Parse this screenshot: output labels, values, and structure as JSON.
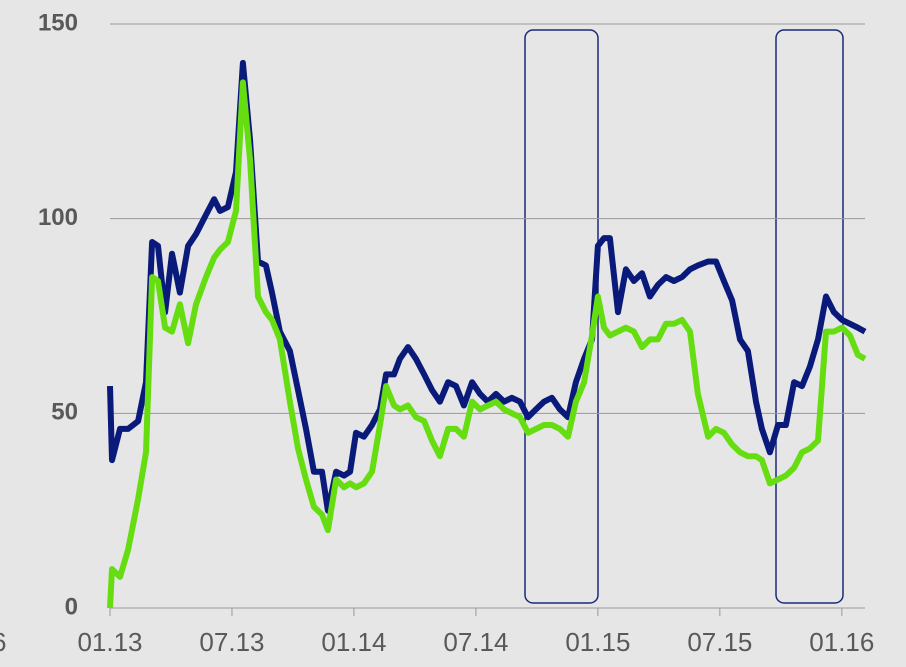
{
  "chart_data": {
    "type": "line",
    "clipped_label": "6",
    "x": [
      0,
      0.1,
      0.49,
      0.89,
      1.38,
      1.77,
      2.07,
      2.36,
      2.71,
      3.05,
      3.44,
      3.84,
      4.23,
      4.72,
      5.12,
      5.41,
      5.8,
      6.2,
      6.54,
      6.89,
      7.28,
      7.67,
      7.97,
      8.36,
      8.85,
      9.25,
      9.64,
      10.03,
      10.43,
      10.72,
      11.12,
      11.51,
      11.81,
      12.1,
      12.49,
      12.89,
      13.28,
      13.58,
      13.97,
      14.26,
      14.66,
      15.05,
      15.45,
      15.84,
      16.23,
      16.63,
      17.02,
      17.41,
      17.81,
      18.2,
      18.59,
      18.99,
      19.38,
      19.77,
      20.17,
      20.56,
      20.95,
      21.35,
      21.74,
      22.13,
      22.53,
      22.92,
      23.32,
      23.71,
      24,
      24.3,
      24.59,
      24.99,
      25.38,
      25.77,
      26.17,
      26.56,
      26.95,
      27.35,
      27.74,
      28.14,
      28.53,
      28.92,
      29.42,
      29.81,
      30.2,
      30.6,
      30.99,
      31.38,
      31.78,
      32.07,
      32.46,
      32.86,
      33.25,
      33.65,
      34.04,
      34.43,
      34.83,
      35.22,
      35.61,
      36.01,
      36.4,
      36.79,
      37.14
    ],
    "series": [
      {
        "color": "#0a1a7a",
        "values": [
          57,
          38,
          46,
          46,
          48,
          58,
          94,
          93,
          76,
          91,
          81,
          93,
          96,
          101,
          105,
          102,
          103,
          112,
          140,
          120,
          89,
          88,
          81,
          71,
          66,
          56,
          46,
          35,
          35,
          25,
          35,
          34,
          35,
          45,
          44,
          47,
          51,
          60,
          60,
          64,
          67,
          64,
          60,
          56,
          53,
          58,
          57,
          52,
          58,
          55,
          53,
          55,
          53,
          54,
          53,
          49,
          51,
          53,
          54,
          51,
          49,
          58,
          64,
          69,
          93,
          95,
          95,
          76,
          87,
          84,
          86,
          80,
          83,
          85,
          84,
          85,
          87,
          88,
          89,
          89,
          84,
          79,
          69,
          66,
          53,
          46,
          40,
          47,
          47,
          58,
          57,
          62,
          69,
          80,
          76,
          74,
          73,
          72,
          71
        ]
      },
      {
        "color": "#66dd11",
        "values": [
          0,
          10,
          8,
          15,
          28,
          40,
          85,
          84,
          72,
          71,
          78,
          68,
          78,
          85,
          90,
          92,
          94,
          102,
          135,
          115,
          80,
          76,
          74,
          69,
          53,
          41,
          33,
          26,
          24,
          20,
          33,
          31,
          32,
          31,
          32,
          35,
          47,
          57,
          52,
          51,
          52,
          49,
          48,
          43,
          39,
          46,
          46,
          44,
          53,
          51,
          52,
          53,
          51,
          50,
          49,
          45,
          46,
          47,
          47,
          46,
          44,
          53,
          58,
          70,
          80,
          72,
          70,
          71,
          72,
          71,
          67,
          69,
          69,
          73,
          73,
          74,
          71,
          55,
          44,
          46,
          45,
          42,
          40,
          39,
          39,
          38,
          32,
          33,
          34,
          36,
          40,
          41,
          43,
          71,
          71,
          72,
          70,
          65,
          64
        ]
      }
    ],
    "xlim": [
      0,
      37.14
    ],
    "xticks": [
      {
        "value": 0,
        "label": "01.13"
      },
      {
        "value": 6,
        "label": "07.13"
      },
      {
        "value": 12,
        "label": "01.14"
      },
      {
        "value": 18,
        "label": "07.14"
      },
      {
        "value": 24,
        "label": "01.15"
      },
      {
        "value": 30,
        "label": "07.15"
      },
      {
        "value": 36,
        "label": "01.16"
      }
    ],
    "ylim": [
      0,
      150
    ],
    "yticks": [
      0,
      50,
      100,
      150
    ],
    "grid": true
  }
}
